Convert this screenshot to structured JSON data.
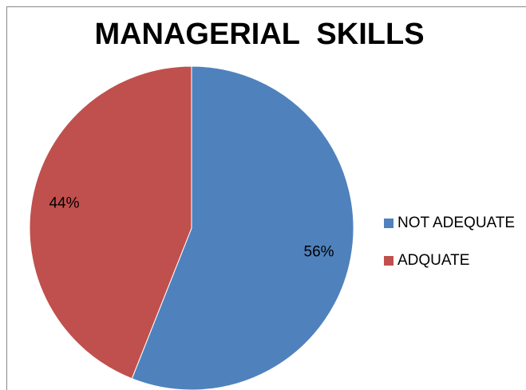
{
  "chart_data": {
    "type": "pie",
    "title": "MANAGERIAL  SKILLS",
    "categories": [
      "NOT ADEQUATE",
      "ADQUATE"
    ],
    "values": [
      56,
      44
    ],
    "value_labels": [
      "56%",
      "44%"
    ],
    "colors": [
      "#4f81bd",
      "#c0504d"
    ],
    "legend": "right"
  }
}
